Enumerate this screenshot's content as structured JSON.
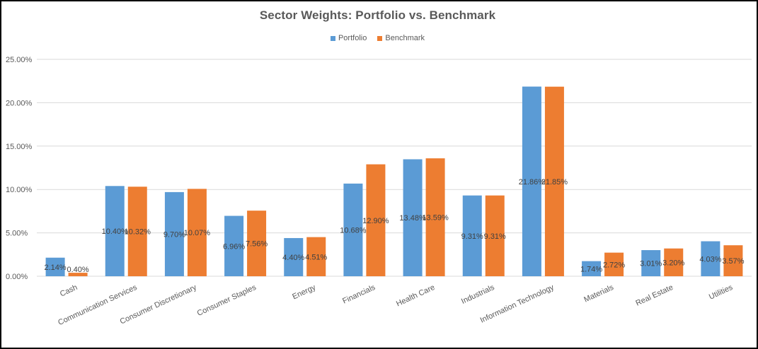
{
  "chart_data": {
    "type": "bar",
    "title": "Sector Weights:  Portfolio vs. Benchmark",
    "xlabel": "",
    "ylabel": "",
    "categories": [
      "Cash",
      "Communication Services",
      "Consumer Discretionary",
      "Consumer Staples",
      "Energy",
      "Financials",
      "Health Care",
      "Industrials",
      "Information Technology",
      "Materials",
      "Real Estate",
      "Utilities"
    ],
    "series": [
      {
        "name": "Portfolio",
        "color": "#5B9BD5",
        "values": [
          2.14,
          10.4,
          9.7,
          6.96,
          4.4,
          10.68,
          13.48,
          9.31,
          21.86,
          1.74,
          3.01,
          4.03
        ],
        "labels": [
          "2.14%",
          "10.40%",
          "9.70%",
          "6.96%",
          "4.40%",
          "10.68%",
          "13.48%",
          "9.31%",
          "21.86%",
          "1.74%",
          "3.01%",
          "4.03%"
        ]
      },
      {
        "name": "Benchmark",
        "color": "#ED7D31",
        "values": [
          0.4,
          10.32,
          10.07,
          7.56,
          4.51,
          12.9,
          13.59,
          9.31,
          21.85,
          2.72,
          3.2,
          3.57
        ],
        "labels": [
          "0.40%",
          "10.32%",
          "10.07%",
          "7.56%",
          "4.51%",
          "12.90%",
          "13.59%",
          "9.31%",
          "21.85%",
          "2.72%",
          "3.20%",
          "3.57%"
        ]
      }
    ],
    "ylim": [
      0,
      25
    ],
    "yticks": [
      0,
      5,
      10,
      15,
      20,
      25
    ],
    "ytick_labels": [
      "0.00%",
      "5.00%",
      "10.00%",
      "15.00%",
      "20.00%",
      "25.00%"
    ],
    "grid": true,
    "legend_position": "top-center"
  }
}
